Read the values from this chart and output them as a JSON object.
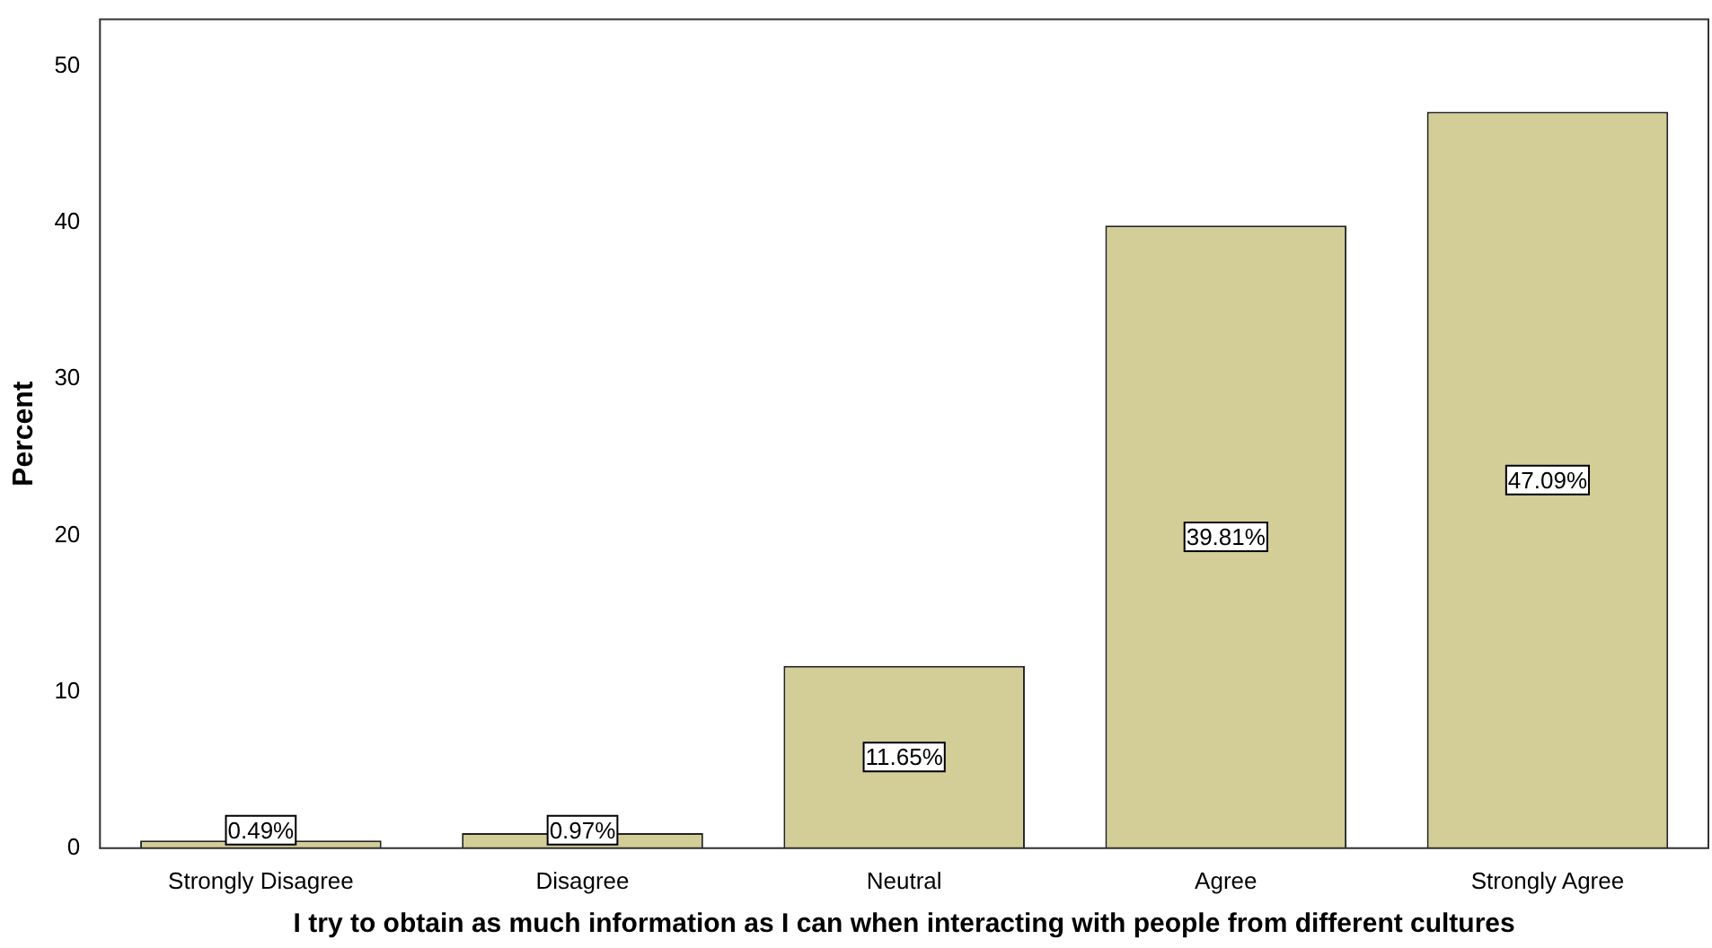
{
  "chart_data": {
    "type": "bar",
    "xlabel": "I try to obtain as much information as I can when interacting with people from different cultures",
    "ylabel": "Percent",
    "categories": [
      "Strongly Disagree",
      "Disagree",
      "Neutral",
      "Agree",
      "Strongly Agree"
    ],
    "values": [
      0.49,
      0.97,
      11.65,
      39.81,
      47.09
    ],
    "value_labels": [
      "0.49%",
      "0.97%",
      "11.65%",
      "39.81%",
      "47.09%"
    ],
    "color": "#d3ce97",
    "ylim": [
      0,
      53
    ],
    "yticks": [
      0,
      10,
      20,
      30,
      40,
      50
    ],
    "grid": false,
    "legend": false
  }
}
